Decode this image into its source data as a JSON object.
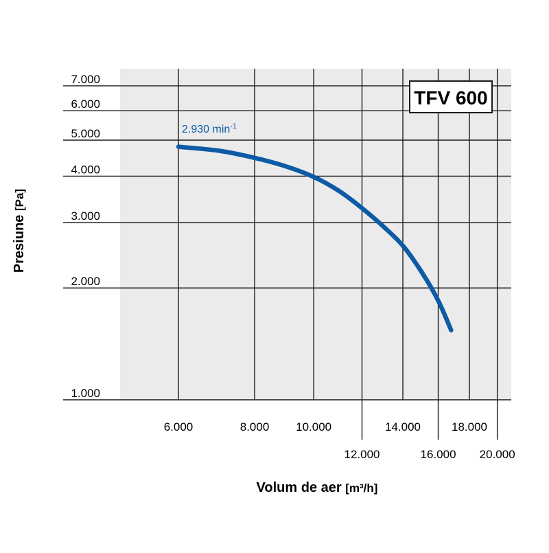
{
  "chart_data": {
    "type": "line",
    "title": "TFV 600",
    "xlabel": "Volum de aer",
    "xlabel_unit": "[m³/h]",
    "ylabel": "Presiune",
    "ylabel_unit": "[Pa]",
    "x_scale": "log",
    "y_scale": "log",
    "xlim": [
      4000,
      22000
    ],
    "ylim": [
      950,
      8200
    ],
    "x_ticks": [
      {
        "value": 6000,
        "label": "6.000",
        "row": 1
      },
      {
        "value": 8000,
        "label": "8.000",
        "row": 1
      },
      {
        "value": 10000,
        "label": "10.000",
        "row": 1
      },
      {
        "value": 12000,
        "label": "12.000",
        "row": 2
      },
      {
        "value": 14000,
        "label": "14.000",
        "row": 1
      },
      {
        "value": 16000,
        "label": "16.000",
        "row": 2
      },
      {
        "value": 18000,
        "label": "18.000",
        "row": 1
      },
      {
        "value": 20000,
        "label": "20.000",
        "row": 2
      }
    ],
    "y_ticks": [
      {
        "value": 1000,
        "label": "1.000"
      },
      {
        "value": 2000,
        "label": "2.000"
      },
      {
        "value": 3000,
        "label": "3.000"
      },
      {
        "value": 4000,
        "label": "4.000"
      },
      {
        "value": 5000,
        "label": "5.000"
      },
      {
        "value": 6000,
        "label": "6.000"
      },
      {
        "value": 7000,
        "label": "7.000"
      }
    ],
    "grid": true,
    "series": [
      {
        "name": "2.930 min",
        "name_superscript": "-1",
        "color": "#0d5ba6",
        "x": [
          6000,
          7000,
          8000,
          9000,
          10000,
          11000,
          12000,
          13000,
          14000,
          15000,
          16000,
          16800
        ],
        "y": [
          4800,
          4680,
          4480,
          4250,
          3980,
          3650,
          3280,
          2930,
          2600,
          2220,
          1850,
          1540
        ]
      }
    ]
  },
  "colors": {
    "plot_background": "#ebebeb",
    "grid": "#1a1a1a",
    "series": "#0d5ba6"
  }
}
